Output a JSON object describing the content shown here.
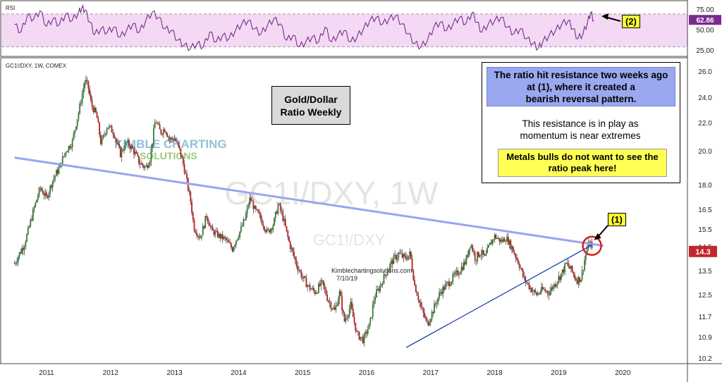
{
  "chart_data": {
    "type": "candlestick",
    "symbol_label": "GC1!/DXY, 1W, COMEX",
    "watermark_big": "GC1!/DXY, 1W",
    "watermark_small": "GC1!/DXY",
    "x_ticks": [
      "2011",
      "2012",
      "2013",
      "2014",
      "2015",
      "2016",
      "2017",
      "2018",
      "2019",
      "2020"
    ],
    "y_ticks": [
      "26.0",
      "24.0",
      "22.0",
      "20.0",
      "18.0",
      "16.5",
      "15.5",
      "14.5",
      "13.5",
      "12.5",
      "11.7",
      "10.9",
      "10.2"
    ],
    "ylim": [
      10.2,
      26.0
    ],
    "last_price": "14.3",
    "ratio_path": [
      [
        2010.5,
        13.8
      ],
      [
        2010.65,
        14.6
      ],
      [
        2010.8,
        16.5
      ],
      [
        2010.9,
        17.8
      ],
      [
        2011.0,
        17.2
      ],
      [
        2011.1,
        18.3
      ],
      [
        2011.2,
        19.0
      ],
      [
        2011.3,
        20.0
      ],
      [
        2011.4,
        20.6
      ],
      [
        2011.5,
        22.8
      ],
      [
        2011.6,
        25.3
      ],
      [
        2011.65,
        24.8
      ],
      [
        2011.7,
        23.4
      ],
      [
        2011.78,
        22.6
      ],
      [
        2011.85,
        20.5
      ],
      [
        2011.95,
        21.8
      ],
      [
        2012.05,
        21.3
      ],
      [
        2012.15,
        19.8
      ],
      [
        2012.25,
        20.6
      ],
      [
        2012.35,
        20.1
      ],
      [
        2012.45,
        19.3
      ],
      [
        2012.55,
        19.0
      ],
      [
        2012.62,
        19.6
      ],
      [
        2012.7,
        22.2
      ],
      [
        2012.78,
        21.3
      ],
      [
        2012.85,
        21.6
      ],
      [
        2012.92,
        20.8
      ],
      [
        2013.0,
        20.9
      ],
      [
        2013.08,
        20.0
      ],
      [
        2013.15,
        19.0
      ],
      [
        2013.25,
        17.0
      ],
      [
        2013.3,
        15.6
      ],
      [
        2013.4,
        15.0
      ],
      [
        2013.5,
        16.2
      ],
      [
        2013.58,
        15.4
      ],
      [
        2013.7,
        15.1
      ],
      [
        2013.8,
        14.9
      ],
      [
        2013.9,
        14.4
      ],
      [
        2014.0,
        15.2
      ],
      [
        2014.1,
        16.0
      ],
      [
        2014.18,
        17.2
      ],
      [
        2014.25,
        16.5
      ],
      [
        2014.35,
        16.0
      ],
      [
        2014.45,
        15.3
      ],
      [
        2014.55,
        15.8
      ],
      [
        2014.62,
        16.8
      ],
      [
        2014.7,
        16.0
      ],
      [
        2014.8,
        14.6
      ],
      [
        2014.9,
        13.8
      ],
      [
        2015.0,
        13.2
      ],
      [
        2015.1,
        12.8
      ],
      [
        2015.2,
        12.6
      ],
      [
        2015.3,
        13.0
      ],
      [
        2015.4,
        12.3
      ],
      [
        2015.5,
        11.9
      ],
      [
        2015.58,
        12.6
      ],
      [
        2015.65,
        11.5
      ],
      [
        2015.75,
        12.1
      ],
      [
        2015.85,
        11.0
      ],
      [
        2015.95,
        10.8
      ],
      [
        2016.05,
        11.4
      ],
      [
        2016.12,
        12.4
      ],
      [
        2016.2,
        12.8
      ],
      [
        2016.3,
        13.4
      ],
      [
        2016.4,
        13.9
      ],
      [
        2016.5,
        14.2
      ],
      [
        2016.6,
        14.0
      ],
      [
        2016.68,
        14.2
      ],
      [
        2016.75,
        12.9
      ],
      [
        2016.85,
        12.0
      ],
      [
        2016.95,
        11.4
      ],
      [
        2017.05,
        12.0
      ],
      [
        2017.15,
        12.6
      ],
      [
        2017.25,
        12.9
      ],
      [
        2017.35,
        13.2
      ],
      [
        2017.45,
        13.5
      ],
      [
        2017.55,
        13.9
      ],
      [
        2017.62,
        14.7
      ],
      [
        2017.7,
        14.0
      ],
      [
        2017.78,
        14.3
      ],
      [
        2017.85,
        14.0
      ],
      [
        2017.92,
        14.6
      ],
      [
        2018.0,
        15.1
      ],
      [
        2018.1,
        14.8
      ],
      [
        2018.18,
        15.0
      ],
      [
        2018.28,
        14.4
      ],
      [
        2018.38,
        13.8
      ],
      [
        2018.45,
        13.2
      ],
      [
        2018.55,
        12.8
      ],
      [
        2018.65,
        12.5
      ],
      [
        2018.75,
        12.7
      ],
      [
        2018.85,
        12.6
      ],
      [
        2018.95,
        13.0
      ],
      [
        2019.05,
        13.4
      ],
      [
        2019.12,
        13.8
      ],
      [
        2019.2,
        13.5
      ],
      [
        2019.28,
        13.1
      ],
      [
        2019.35,
        13.2
      ],
      [
        2019.4,
        13.9
      ],
      [
        2019.46,
        14.6
      ],
      [
        2019.5,
        14.7
      ],
      [
        2019.52,
        14.3
      ]
    ],
    "rsi": {
      "label": "RSI",
      "value_label": "62.86",
      "ticks": [
        "75.00",
        "50.00",
        "25.00"
      ],
      "ylim": [
        20,
        82
      ],
      "band": [
        30,
        70
      ],
      "path": [
        [
          2010.5,
          57
        ],
        [
          2010.6,
          48
        ],
        [
          2010.7,
          68
        ],
        [
          2010.8,
          64
        ],
        [
          2010.9,
          74
        ],
        [
          2011.0,
          55
        ],
        [
          2011.1,
          64
        ],
        [
          2011.2,
          57
        ],
        [
          2011.3,
          70
        ],
        [
          2011.4,
          62
        ],
        [
          2011.5,
          72
        ],
        [
          2011.55,
          77
        ],
        [
          2011.6,
          75
        ],
        [
          2011.68,
          60
        ],
        [
          2011.75,
          45
        ],
        [
          2011.85,
          52
        ],
        [
          2011.95,
          48
        ],
        [
          2012.05,
          54
        ],
        [
          2012.15,
          42
        ],
        [
          2012.25,
          50
        ],
        [
          2012.35,
          58
        ],
        [
          2012.45,
          48
        ],
        [
          2012.55,
          62
        ],
        [
          2012.65,
          72
        ],
        [
          2012.75,
          66
        ],
        [
          2012.85,
          52
        ],
        [
          2012.95,
          50
        ],
        [
          2013.05,
          38
        ],
        [
          2013.15,
          32
        ],
        [
          2013.25,
          28
        ],
        [
          2013.35,
          34
        ],
        [
          2013.45,
          30
        ],
        [
          2013.55,
          48
        ],
        [
          2013.65,
          36
        ],
        [
          2013.75,
          44
        ],
        [
          2013.85,
          40
        ],
        [
          2013.95,
          50
        ],
        [
          2014.05,
          58
        ],
        [
          2014.15,
          62
        ],
        [
          2014.25,
          52
        ],
        [
          2014.35,
          46
        ],
        [
          2014.45,
          56
        ],
        [
          2014.55,
          64
        ],
        [
          2014.65,
          58
        ],
        [
          2014.75,
          38
        ],
        [
          2014.85,
          44
        ],
        [
          2014.95,
          30
        ],
        [
          2015.05,
          36
        ],
        [
          2015.15,
          42
        ],
        [
          2015.25,
          36
        ],
        [
          2015.35,
          54
        ],
        [
          2015.45,
          36
        ],
        [
          2015.55,
          44
        ],
        [
          2015.65,
          50
        ],
        [
          2015.75,
          36
        ],
        [
          2015.85,
          42
        ],
        [
          2015.95,
          52
        ],
        [
          2016.05,
          62
        ],
        [
          2016.15,
          66
        ],
        [
          2016.25,
          58
        ],
        [
          2016.35,
          64
        ],
        [
          2016.45,
          68
        ],
        [
          2016.55,
          58
        ],
        [
          2016.65,
          46
        ],
        [
          2016.75,
          34
        ],
        [
          2016.85,
          30
        ],
        [
          2016.95,
          38
        ],
        [
          2017.05,
          54
        ],
        [
          2017.15,
          60
        ],
        [
          2017.25,
          50
        ],
        [
          2017.35,
          58
        ],
        [
          2017.45,
          66
        ],
        [
          2017.55,
          58
        ],
        [
          2017.65,
          72
        ],
        [
          2017.72,
          60
        ],
        [
          2017.8,
          48
        ],
        [
          2017.9,
          58
        ],
        [
          2018.0,
          62
        ],
        [
          2018.1,
          66
        ],
        [
          2018.2,
          54
        ],
        [
          2018.3,
          46
        ],
        [
          2018.4,
          52
        ],
        [
          2018.5,
          40
        ],
        [
          2018.6,
          34
        ],
        [
          2018.68,
          28
        ],
        [
          2018.75,
          36
        ],
        [
          2018.85,
          44
        ],
        [
          2018.95,
          50
        ],
        [
          2019.05,
          58
        ],
        [
          2019.15,
          62
        ],
        [
          2019.22,
          52
        ],
        [
          2019.3,
          40
        ],
        [
          2019.38,
          46
        ],
        [
          2019.45,
          60
        ],
        [
          2019.5,
          72
        ],
        [
          2019.55,
          62
        ]
      ]
    },
    "resistance_line": [
      [
        2010.5,
        19.6
      ],
      [
        2019.7,
        14.55
      ]
    ],
    "support_line": [
      [
        2016.62,
        10.55
      ],
      [
        2019.52,
        14.6
      ]
    ],
    "watermark_text": "Kimblechartingsolutions.com",
    "watermark_date": "7/10/19",
    "logo_word_1": "KIMBLE CHARTING",
    "logo_word_2": "SOLUTIONS",
    "colors": {
      "up": "#2f7d32",
      "down": "#b71c1c",
      "rsi": "#7b2b8f",
      "rsi_band": "#f3d9f3",
      "resistance": "#98a6ef",
      "support": "#1f3fb0",
      "circle": "#d62020",
      "last": "#c0282e"
    }
  },
  "title_box": {
    "line1": "Gold/Dollar",
    "line2": "Ratio Weekly"
  },
  "notes": {
    "n1_l1": "The ratio hit resistance two weeks ago",
    "n1_l2": "at (1), where it created a",
    "n1_l3": "bearish reversal pattern.",
    "n2_l1": "This resistance is in play as",
    "n2_l2": "momentum is near extremes",
    "n3_l1": "Metals bulls do not want to see the",
    "n3_l2": "ratio peak here!"
  },
  "callouts": {
    "c1": "(1)",
    "c2": "(2)"
  }
}
